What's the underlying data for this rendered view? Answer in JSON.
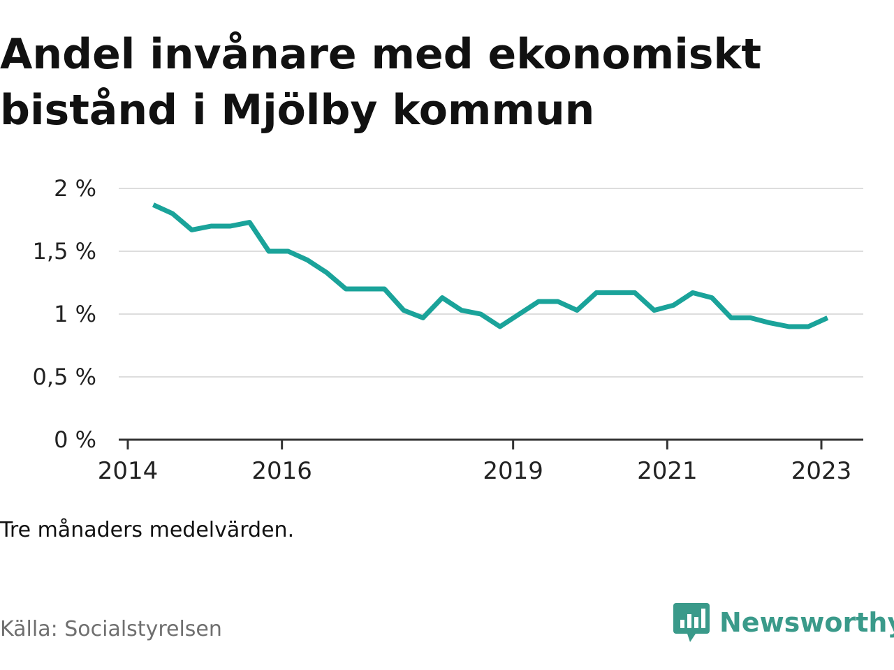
{
  "title": "Andel invånare med ekonomiskt bistånd i Mjölby kommun",
  "note": "Tre månaders medelvärden.",
  "source": "Källa: Socialstyrelsen",
  "brand": {
    "name": "Newsworthy",
    "logo_icon": "newsworthy-chart-bubble-icon",
    "color": "#3a9a8a"
  },
  "colors": {
    "line": "#1aa39a",
    "grid": "#dddddd",
    "axis": "#333333"
  },
  "chart_data": {
    "type": "line",
    "title": "Andel invånare med ekonomiskt bistånd i Mjölby kommun",
    "xlabel": "",
    "ylabel": "",
    "ylim": [
      0,
      2
    ],
    "xlim": [
      2014.0,
      2023.75
    ],
    "y_ticks": [
      {
        "value": 0,
        "label": "0 %"
      },
      {
        "value": 0.5,
        "label": "0,5 %"
      },
      {
        "value": 1,
        "label": "1 %"
      },
      {
        "value": 1.5,
        "label": "1,5 %"
      },
      {
        "value": 2,
        "label": "2 %"
      }
    ],
    "x_ticks": [
      {
        "value": 2014,
        "label": "2014"
      },
      {
        "value": 2016,
        "label": "2016"
      },
      {
        "value": 2019,
        "label": "2019"
      },
      {
        "value": 2021,
        "label": "2021"
      },
      {
        "value": 2023,
        "label": "2023"
      }
    ],
    "grid": true,
    "legend": "none",
    "series": [
      {
        "x": [
          2014.33,
          2014.58,
          2014.83,
          2015.08,
          2015.33,
          2015.58,
          2015.83,
          2016.08,
          2016.33,
          2016.58,
          2016.83,
          2017.08,
          2017.33,
          2017.58,
          2017.83,
          2018.08,
          2018.33,
          2018.58,
          2018.83,
          2019.08,
          2019.33,
          2019.58,
          2019.83,
          2020.08,
          2020.33,
          2020.58,
          2020.83,
          2021.08,
          2021.33,
          2021.58,
          2021.83,
          2022.08,
          2022.33,
          2022.58,
          2022.83,
          2023.08
        ],
        "y": [
          1.87,
          1.8,
          1.67,
          1.7,
          1.7,
          1.73,
          1.5,
          1.5,
          1.43,
          1.33,
          1.2,
          1.2,
          1.2,
          1.03,
          0.97,
          1.13,
          1.03,
          1.0,
          0.9,
          1.0,
          1.1,
          1.1,
          1.03,
          1.17,
          1.17,
          1.17,
          1.03,
          1.07,
          1.17,
          1.13,
          0.97,
          0.97,
          0.93,
          0.9,
          0.9,
          0.97
        ]
      }
    ]
  }
}
